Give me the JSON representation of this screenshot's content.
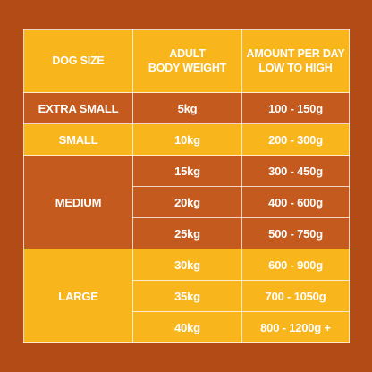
{
  "table": {
    "header": [
      "DOG SIZE",
      "ADULT\nBODY WEIGHT",
      "AMOUNT PER DAY\nLOW TO HIGH"
    ],
    "groups": [
      {
        "size": "EXTRA SMALL",
        "rows": [
          [
            "5kg",
            "100 - 150g"
          ]
        ]
      },
      {
        "size": "SMALL",
        "rows": [
          [
            "10kg",
            "200 - 300g"
          ]
        ]
      },
      {
        "size": "MEDIUM",
        "rows": [
          [
            "15kg",
            "300 - 450g"
          ],
          [
            "20kg",
            "400 - 600g"
          ],
          [
            "25kg",
            "500 - 750g"
          ]
        ]
      },
      {
        "size": "LARGE",
        "rows": [
          [
            "30kg",
            "600 - 900g"
          ],
          [
            "35kg",
            "700 - 1050g"
          ],
          [
            "40kg",
            "800 - 1200g +"
          ]
        ]
      }
    ]
  }
}
